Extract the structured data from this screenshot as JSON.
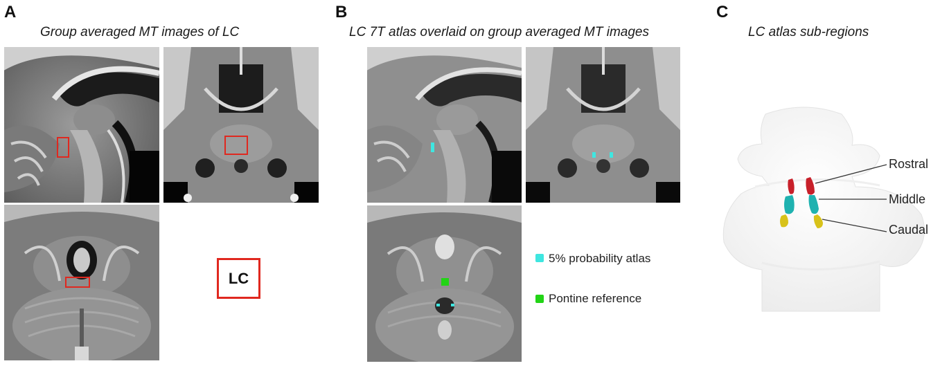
{
  "panels": {
    "a": {
      "letter": "A",
      "title": "Group averaged MT  images of LC",
      "lc_key_label": "LC"
    },
    "b": {
      "letter": "B",
      "title": "LC 7T atlas overlaid on  group averaged MT images",
      "legend": [
        {
          "label": "5% probability atlas",
          "color": "#3fe6e0"
        },
        {
          "label": "Pontine reference",
          "color": "#22d416"
        }
      ]
    },
    "c": {
      "letter": "C",
      "title": "LC atlas sub-regions",
      "subregions": [
        {
          "label": "Rostral",
          "color": "#c8202a"
        },
        {
          "label": "Middle",
          "color": "#1fb2b0"
        },
        {
          "label": "Caudal",
          "color": "#d8c21a"
        }
      ]
    }
  },
  "colors": {
    "roi_box": "#e0281f"
  }
}
